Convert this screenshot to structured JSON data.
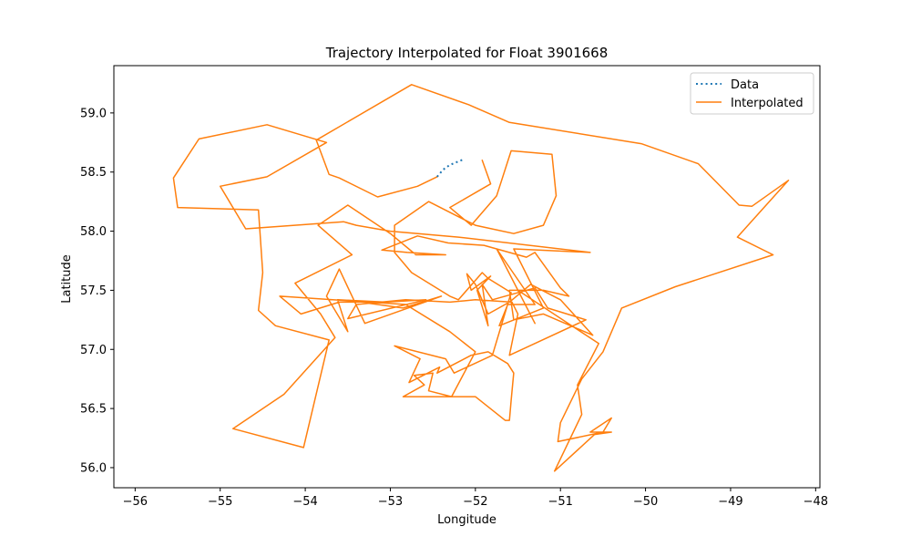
{
  "chart_data": {
    "type": "line",
    "title": "Trajectory Interpolated for Float 3901668",
    "xlabel": "Longitude",
    "ylabel": "Latitude",
    "xlim": [
      -56.25,
      -47.95
    ],
    "ylim": [
      55.83,
      59.4
    ],
    "xticks": [
      -56,
      -55,
      -54,
      -53,
      -52,
      -51,
      -50,
      -49,
      -48
    ],
    "yticks": [
      56.0,
      56.5,
      57.0,
      57.5,
      58.0,
      58.5,
      59.0
    ],
    "xtick_labels": [
      "−56",
      "−55",
      "−54",
      "−53",
      "−52",
      "−51",
      "−50",
      "−49",
      "−48"
    ],
    "ytick_labels": [
      "56.0",
      "56.5",
      "57.0",
      "57.5",
      "58.0",
      "58.5",
      "59.0"
    ],
    "grid": false,
    "legend_position": "top-right",
    "series": [
      {
        "name": "Data",
        "style": "dotted",
        "color": "#1f77b4",
        "points": [
          [
            -52.45,
            58.46
          ],
          [
            -52.38,
            58.52
          ],
          [
            -52.3,
            58.56
          ],
          [
            -52.2,
            58.59
          ],
          [
            -52.13,
            58.61
          ]
        ]
      },
      {
        "name": "Interpolated",
        "style": "solid",
        "color": "#ff7f0e",
        "points": [
          [
            -52.45,
            58.46
          ],
          [
            -52.68,
            58.38
          ],
          [
            -53.15,
            58.29
          ],
          [
            -53.6,
            58.45
          ],
          [
            -53.72,
            58.48
          ],
          [
            -53.87,
            58.77
          ],
          [
            -52.75,
            59.24
          ],
          [
            -52.08,
            59.07
          ],
          [
            -51.6,
            58.92
          ],
          [
            -50.05,
            58.74
          ],
          [
            -49.38,
            58.57
          ],
          [
            -48.9,
            58.22
          ],
          [
            -48.75,
            58.21
          ],
          [
            -48.32,
            58.43
          ],
          [
            -48.92,
            57.95
          ],
          [
            -48.5,
            57.8
          ],
          [
            -49.65,
            57.53
          ],
          [
            -50.28,
            57.35
          ],
          [
            -50.5,
            56.98
          ],
          [
            -50.75,
            56.75
          ],
          [
            -51.0,
            56.38
          ],
          [
            -51.03,
            56.22
          ],
          [
            -50.5,
            56.3
          ],
          [
            -50.4,
            56.42
          ],
          [
            -50.65,
            56.3
          ],
          [
            -50.4,
            56.3
          ],
          [
            -50.6,
            56.28
          ],
          [
            -51.07,
            55.97
          ],
          [
            -50.75,
            56.45
          ],
          [
            -50.8,
            56.7
          ],
          [
            -50.55,
            57.05
          ],
          [
            -51.5,
            57.5
          ],
          [
            -51.3,
            57.22
          ],
          [
            -51.75,
            57.85
          ],
          [
            -51.3,
            57.38
          ],
          [
            -51.62,
            57.38
          ],
          [
            -51.72,
            57.2
          ],
          [
            -51.2,
            57.35
          ],
          [
            -51.55,
            57.85
          ],
          [
            -50.65,
            57.82
          ],
          [
            -52.2,
            57.95
          ],
          [
            -53.0,
            58.0
          ],
          [
            -53.4,
            58.05
          ],
          [
            -53.55,
            58.08
          ],
          [
            -54.7,
            58.02
          ],
          [
            -55.0,
            58.38
          ],
          [
            -54.45,
            58.46
          ],
          [
            -53.75,
            58.75
          ],
          [
            -54.45,
            58.9
          ],
          [
            -55.25,
            58.78
          ],
          [
            -55.55,
            58.45
          ],
          [
            -55.5,
            58.2
          ],
          [
            -54.55,
            58.18
          ],
          [
            -54.5,
            57.65
          ],
          [
            -54.55,
            57.33
          ],
          [
            -54.35,
            57.2
          ],
          [
            -53.72,
            57.08
          ],
          [
            -54.02,
            56.17
          ],
          [
            -54.85,
            56.33
          ],
          [
            -54.25,
            56.62
          ],
          [
            -53.65,
            57.1
          ],
          [
            -53.82,
            57.3
          ],
          [
            -54.12,
            57.56
          ],
          [
            -53.45,
            57.8
          ],
          [
            -53.85,
            58.05
          ],
          [
            -53.5,
            58.22
          ],
          [
            -53.0,
            57.98
          ],
          [
            -52.7,
            57.8
          ],
          [
            -52.35,
            57.8
          ],
          [
            -52.8,
            57.82
          ],
          [
            -53.1,
            57.84
          ],
          [
            -52.68,
            57.96
          ],
          [
            -52.32,
            57.9
          ],
          [
            -51.9,
            57.88
          ],
          [
            -51.4,
            57.78
          ],
          [
            -51.3,
            57.82
          ],
          [
            -51.0,
            57.52
          ],
          [
            -50.9,
            57.45
          ],
          [
            -51.2,
            57.5
          ],
          [
            -51.6,
            57.5
          ],
          [
            -51.55,
            57.25
          ],
          [
            -51.2,
            57.3
          ],
          [
            -50.62,
            57.12
          ],
          [
            -51.0,
            57.42
          ],
          [
            -51.35,
            57.55
          ],
          [
            -51.6,
            57.4
          ],
          [
            -51.85,
            57.3
          ],
          [
            -52.0,
            57.55
          ],
          [
            -52.1,
            57.64
          ],
          [
            -52.05,
            57.5
          ],
          [
            -51.82,
            57.62
          ],
          [
            -51.98,
            57.5
          ],
          [
            -51.85,
            57.2
          ],
          [
            -51.92,
            57.55
          ],
          [
            -51.8,
            57.42
          ],
          [
            -51.3,
            57.52
          ],
          [
            -51.15,
            57.35
          ],
          [
            -50.7,
            57.25
          ],
          [
            -51.6,
            56.95
          ],
          [
            -51.5,
            57.3
          ],
          [
            -51.57,
            57.4
          ],
          [
            -52.0,
            57.42
          ],
          [
            -52.3,
            57.4
          ],
          [
            -52.82,
            57.42
          ],
          [
            -53.4,
            57.38
          ],
          [
            -53.5,
            57.26
          ],
          [
            -52.58,
            57.42
          ],
          [
            -53.05,
            57.4
          ],
          [
            -53.62,
            57.42
          ],
          [
            -53.5,
            57.15
          ],
          [
            -53.75,
            57.45
          ],
          [
            -53.6,
            57.68
          ],
          [
            -53.3,
            57.22
          ],
          [
            -52.4,
            57.45
          ],
          [
            -52.85,
            57.35
          ],
          [
            -53.35,
            57.4
          ],
          [
            -53.6,
            57.4
          ],
          [
            -54.05,
            57.3
          ],
          [
            -54.3,
            57.45
          ],
          [
            -52.82,
            57.38
          ],
          [
            -52.3,
            57.15
          ],
          [
            -52.0,
            56.98
          ],
          [
            -52.28,
            56.6
          ],
          [
            -52.55,
            56.65
          ],
          [
            -52.5,
            56.8
          ],
          [
            -52.72,
            56.78
          ],
          [
            -52.6,
            56.7
          ],
          [
            -52.85,
            56.6
          ],
          [
            -52.0,
            56.6
          ],
          [
            -51.65,
            56.4
          ],
          [
            -51.6,
            56.4
          ],
          [
            -51.58,
            56.57
          ],
          [
            -51.55,
            56.8
          ],
          [
            -51.62,
            56.88
          ],
          [
            -51.85,
            56.98
          ],
          [
            -52.05,
            56.95
          ],
          [
            -52.45,
            56.8
          ],
          [
            -52.42,
            56.85
          ],
          [
            -52.78,
            56.72
          ],
          [
            -52.65,
            56.92
          ],
          [
            -52.95,
            57.03
          ],
          [
            -52.35,
            56.92
          ],
          [
            -52.25,
            56.8
          ],
          [
            -51.8,
            56.95
          ],
          [
            -51.58,
            57.48
          ],
          [
            -51.85,
            57.6
          ],
          [
            -51.92,
            57.65
          ],
          [
            -52.2,
            57.42
          ],
          [
            -52.3,
            57.45
          ],
          [
            -52.75,
            57.65
          ],
          [
            -52.95,
            57.82
          ],
          [
            -52.95,
            58.05
          ],
          [
            -52.55,
            58.25
          ],
          [
            -52.0,
            58.05
          ],
          [
            -51.55,
            57.98
          ],
          [
            -51.2,
            58.05
          ],
          [
            -51.05,
            58.3
          ],
          [
            -51.1,
            58.65
          ],
          [
            -51.58,
            58.68
          ],
          [
            -51.75,
            58.3
          ],
          [
            -52.05,
            58.05
          ],
          [
            -52.3,
            58.2
          ],
          [
            -51.82,
            58.4
          ],
          [
            -51.92,
            58.6
          ]
        ]
      }
    ]
  }
}
